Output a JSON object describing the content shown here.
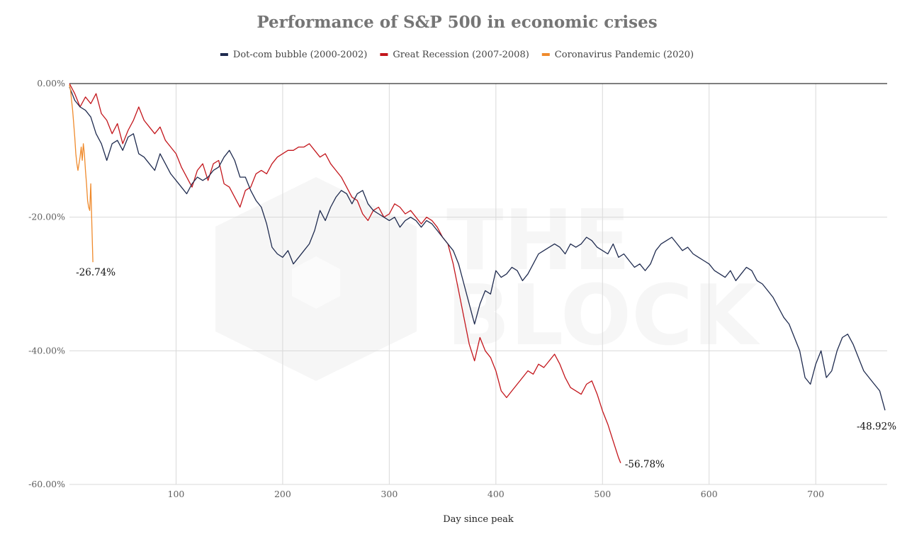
{
  "chart_data": {
    "type": "line",
    "title": "Performance of S&P 500 in economic crises",
    "xlabel": "Day since peak",
    "ylabel": "",
    "xlim": [
      0,
      767
    ],
    "ylim": [
      -60,
      0
    ],
    "x_ticks": [
      {
        "value": 100,
        "label": "100"
      },
      {
        "value": 200,
        "label": "200"
      },
      {
        "value": 300,
        "label": "300"
      },
      {
        "value": 400,
        "label": "400"
      },
      {
        "value": 500,
        "label": "500"
      },
      {
        "value": 600,
        "label": "600"
      },
      {
        "value": 700,
        "label": "700"
      }
    ],
    "y_ticks": [
      {
        "value": 0,
        "label": "0.00%"
      },
      {
        "value": -20,
        "label": "-20.00%"
      },
      {
        "value": -40,
        "label": "-40.00%"
      },
      {
        "value": -60,
        "label": "-60.00%"
      }
    ],
    "grid": true,
    "legend_position": "top-center",
    "watermark": {
      "lines": [
        "THE",
        "BLOCK"
      ]
    },
    "series": [
      {
        "name": "Dot-com bubble (2000-2002)",
        "color": "#1f2b4f",
        "end_label": "-48.92%",
        "points": [
          [
            0,
            -0.5
          ],
          [
            5,
            -2.5
          ],
          [
            10,
            -3.5
          ],
          [
            15,
            -4
          ],
          [
            20,
            -5
          ],
          [
            25,
            -7.5
          ],
          [
            30,
            -9
          ],
          [
            35,
            -11.5
          ],
          [
            40,
            -9
          ],
          [
            45,
            -8.5
          ],
          [
            50,
            -10
          ],
          [
            55,
            -8
          ],
          [
            60,
            -7.5
          ],
          [
            65,
            -10.5
          ],
          [
            70,
            -11
          ],
          [
            75,
            -12
          ],
          [
            80,
            -13
          ],
          [
            85,
            -10.5
          ],
          [
            90,
            -12
          ],
          [
            95,
            -13.5
          ],
          [
            100,
            -14.5
          ],
          [
            105,
            -15.5
          ],
          [
            110,
            -16.5
          ],
          [
            115,
            -15
          ],
          [
            120,
            -14
          ],
          [
            125,
            -14.5
          ],
          [
            130,
            -14
          ],
          [
            135,
            -13
          ],
          [
            140,
            -12.5
          ],
          [
            145,
            -11
          ],
          [
            150,
            -10
          ],
          [
            155,
            -11.5
          ],
          [
            160,
            -14
          ],
          [
            165,
            -14
          ],
          [
            170,
            -16
          ],
          [
            175,
            -17.5
          ],
          [
            180,
            -18.5
          ],
          [
            185,
            -21
          ],
          [
            190,
            -24.5
          ],
          [
            195,
            -25.5
          ],
          [
            200,
            -26
          ],
          [
            205,
            -25
          ],
          [
            210,
            -27
          ],
          [
            215,
            -26
          ],
          [
            220,
            -25
          ],
          [
            225,
            -24
          ],
          [
            230,
            -22
          ],
          [
            235,
            -19
          ],
          [
            240,
            -20.5
          ],
          [
            245,
            -18.5
          ],
          [
            250,
            -17
          ],
          [
            255,
            -16
          ],
          [
            260,
            -16.5
          ],
          [
            265,
            -18
          ],
          [
            270,
            -16.5
          ],
          [
            275,
            -16
          ],
          [
            280,
            -18
          ],
          [
            285,
            -19
          ],
          [
            290,
            -19.5
          ],
          [
            295,
            -20
          ],
          [
            300,
            -20.5
          ],
          [
            305,
            -20
          ],
          [
            310,
            -21.5
          ],
          [
            315,
            -20.5
          ],
          [
            320,
            -20
          ],
          [
            325,
            -20.5
          ],
          [
            330,
            -21.5
          ],
          [
            335,
            -20.5
          ],
          [
            340,
            -21
          ],
          [
            345,
            -22
          ],
          [
            350,
            -23
          ],
          [
            355,
            -24
          ],
          [
            360,
            -25
          ],
          [
            365,
            -27
          ],
          [
            370,
            -30
          ],
          [
            375,
            -33
          ],
          [
            380,
            -36
          ],
          [
            385,
            -33
          ],
          [
            390,
            -31
          ],
          [
            395,
            -31.5
          ],
          [
            400,
            -28
          ],
          [
            405,
            -29
          ],
          [
            410,
            -28.5
          ],
          [
            415,
            -27.5
          ],
          [
            420,
            -28
          ],
          [
            425,
            -29.5
          ],
          [
            430,
            -28.5
          ],
          [
            435,
            -27
          ],
          [
            440,
            -25.5
          ],
          [
            445,
            -25
          ],
          [
            450,
            -24.5
          ],
          [
            455,
            -24
          ],
          [
            460,
            -24.5
          ],
          [
            465,
            -25.5
          ],
          [
            470,
            -24
          ],
          [
            475,
            -24.5
          ],
          [
            480,
            -24
          ],
          [
            485,
            -23
          ],
          [
            490,
            -23.5
          ],
          [
            495,
            -24.5
          ],
          [
            500,
            -25
          ],
          [
            505,
            -25.5
          ],
          [
            510,
            -24
          ],
          [
            515,
            -26
          ],
          [
            520,
            -25.5
          ],
          [
            525,
            -26.5
          ],
          [
            530,
            -27.5
          ],
          [
            535,
            -27
          ],
          [
            540,
            -28
          ],
          [
            545,
            -27
          ],
          [
            550,
            -25
          ],
          [
            555,
            -24
          ],
          [
            560,
            -23.5
          ],
          [
            565,
            -23
          ],
          [
            570,
            -24
          ],
          [
            575,
            -25
          ],
          [
            580,
            -24.5
          ],
          [
            585,
            -25.5
          ],
          [
            590,
            -26
          ],
          [
            595,
            -26.5
          ],
          [
            600,
            -27
          ],
          [
            605,
            -28
          ],
          [
            610,
            -28.5
          ],
          [
            615,
            -29
          ],
          [
            620,
            -28
          ],
          [
            625,
            -29.5
          ],
          [
            630,
            -28.5
          ],
          [
            635,
            -27.5
          ],
          [
            640,
            -28
          ],
          [
            645,
            -29.5
          ],
          [
            650,
            -30
          ],
          [
            655,
            -31
          ],
          [
            660,
            -32
          ],
          [
            665,
            -33.5
          ],
          [
            670,
            -35
          ],
          [
            675,
            -36
          ],
          [
            680,
            -38
          ],
          [
            685,
            -40
          ],
          [
            690,
            -44
          ],
          [
            695,
            -45
          ],
          [
            700,
            -42
          ],
          [
            705,
            -40
          ],
          [
            710,
            -44
          ],
          [
            715,
            -43
          ],
          [
            720,
            -40
          ],
          [
            725,
            -38
          ],
          [
            730,
            -37.5
          ],
          [
            735,
            -39
          ],
          [
            740,
            -41
          ],
          [
            745,
            -43
          ],
          [
            750,
            -44
          ],
          [
            755,
            -45
          ],
          [
            760,
            -46
          ],
          [
            765,
            -48.9
          ]
        ]
      },
      {
        "name": "Great Recession (2007-2008)",
        "color": "#c3161c",
        "end_label": "-56.78%",
        "points": [
          [
            0,
            0
          ],
          [
            5,
            -1.5
          ],
          [
            10,
            -3.5
          ],
          [
            15,
            -2
          ],
          [
            20,
            -3
          ],
          [
            25,
            -1.5
          ],
          [
            30,
            -4.5
          ],
          [
            35,
            -5.5
          ],
          [
            40,
            -7.5
          ],
          [
            45,
            -6
          ],
          [
            50,
            -9
          ],
          [
            55,
            -7
          ],
          [
            60,
            -5.5
          ],
          [
            65,
            -3.5
          ],
          [
            70,
            -5.5
          ],
          [
            75,
            -6.5
          ],
          [
            80,
            -7.5
          ],
          [
            85,
            -6.5
          ],
          [
            90,
            -8.5
          ],
          [
            95,
            -9.5
          ],
          [
            100,
            -10.5
          ],
          [
            105,
            -12.5
          ],
          [
            110,
            -14
          ],
          [
            115,
            -15.5
          ],
          [
            120,
            -13
          ],
          [
            125,
            -12
          ],
          [
            130,
            -14.5
          ],
          [
            135,
            -12
          ],
          [
            140,
            -11.5
          ],
          [
            145,
            -15
          ],
          [
            150,
            -15.5
          ],
          [
            155,
            -17
          ],
          [
            160,
            -18.5
          ],
          [
            165,
            -16
          ],
          [
            170,
            -15.5
          ],
          [
            175,
            -13.5
          ],
          [
            180,
            -13
          ],
          [
            185,
            -13.5
          ],
          [
            190,
            -12
          ],
          [
            195,
            -11
          ],
          [
            200,
            -10.5
          ],
          [
            205,
            -10
          ],
          [
            210,
            -10
          ],
          [
            215,
            -9.5
          ],
          [
            220,
            -9.5
          ],
          [
            225,
            -9
          ],
          [
            230,
            -10
          ],
          [
            235,
            -11
          ],
          [
            240,
            -10.5
          ],
          [
            245,
            -12
          ],
          [
            250,
            -13
          ],
          [
            255,
            -14
          ],
          [
            260,
            -15.5
          ],
          [
            265,
            -17
          ],
          [
            270,
            -17.5
          ],
          [
            275,
            -19.5
          ],
          [
            280,
            -20.5
          ],
          [
            285,
            -19
          ],
          [
            290,
            -18.5
          ],
          [
            295,
            -20
          ],
          [
            300,
            -19.5
          ],
          [
            305,
            -18
          ],
          [
            310,
            -18.5
          ],
          [
            315,
            -19.5
          ],
          [
            320,
            -19
          ],
          [
            325,
            -20
          ],
          [
            330,
            -21
          ],
          [
            335,
            -20
          ],
          [
            340,
            -20.5
          ],
          [
            345,
            -21.5
          ],
          [
            350,
            -23
          ],
          [
            355,
            -24
          ],
          [
            360,
            -27
          ],
          [
            365,
            -31
          ],
          [
            370,
            -35
          ],
          [
            375,
            -39
          ],
          [
            380,
            -41.5
          ],
          [
            385,
            -38
          ],
          [
            390,
            -40
          ],
          [
            395,
            -41
          ],
          [
            400,
            -43
          ],
          [
            405,
            -46
          ],
          [
            410,
            -47
          ],
          [
            415,
            -46
          ],
          [
            420,
            -45
          ],
          [
            425,
            -44
          ],
          [
            430,
            -43
          ],
          [
            435,
            -43.5
          ],
          [
            440,
            -42
          ],
          [
            445,
            -42.5
          ],
          [
            450,
            -41.5
          ],
          [
            455,
            -40.5
          ],
          [
            460,
            -42
          ],
          [
            465,
            -44
          ],
          [
            470,
            -45.5
          ],
          [
            475,
            -46
          ],
          [
            480,
            -46.5
          ],
          [
            485,
            -45
          ],
          [
            490,
            -44.5
          ],
          [
            495,
            -46.5
          ],
          [
            500,
            -49
          ],
          [
            505,
            -51
          ],
          [
            510,
            -53.5
          ],
          [
            515,
            -56
          ],
          [
            517,
            -56.8
          ]
        ]
      },
      {
        "name": "Coronavirus Pandemic (2020)",
        "color": "#ef8a2c",
        "end_label": "-26.74%",
        "points": [
          [
            0,
            -0.2
          ],
          [
            1,
            -1
          ],
          [
            2,
            -2.5
          ],
          [
            3,
            -4
          ],
          [
            4,
            -6
          ],
          [
            5,
            -8
          ],
          [
            6,
            -10.5
          ],
          [
            7,
            -12
          ],
          [
            8,
            -13
          ],
          [
            9,
            -12
          ],
          [
            10,
            -11
          ],
          [
            11,
            -9.5
          ],
          [
            12,
            -11.5
          ],
          [
            13,
            -9
          ],
          [
            14,
            -10.5
          ],
          [
            15,
            -13
          ],
          [
            16,
            -15
          ],
          [
            17,
            -17.5
          ],
          [
            18,
            -18.5
          ],
          [
            19,
            -19
          ],
          [
            20,
            -15
          ],
          [
            21,
            -21
          ],
          [
            22,
            -26.74
          ]
        ]
      }
    ]
  }
}
